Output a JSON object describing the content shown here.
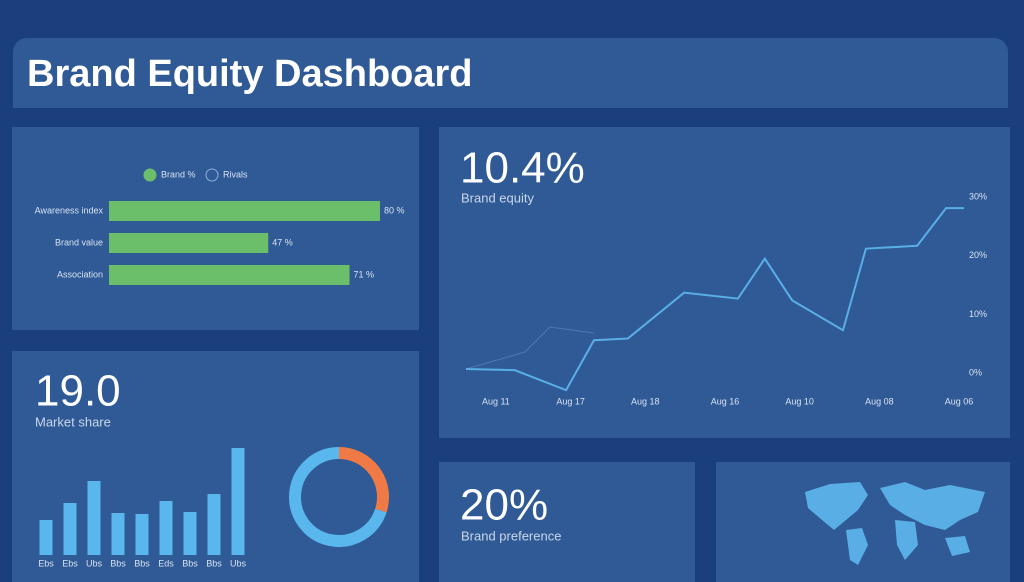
{
  "header": {
    "title": "Brand Equity Dashboard"
  },
  "kpis": [
    {
      "value": "10.4%",
      "label": "Brand equity"
    },
    {
      "value": "19.0",
      "label": "Market share"
    },
    {
      "value": "20%",
      "label": "Brand preference"
    }
  ],
  "chart_data": [
    {
      "type": "hbar",
      "series": [
        {
          "name": "Brand %",
          "color": "#6cbf6a"
        },
        {
          "name": "Rivals",
          "color": "none"
        }
      ],
      "categories": [
        "Awareness index",
        "Brand value",
        "Association"
      ],
      "values": [
        80,
        47,
        71
      ],
      "value_labels": [
        "80 %",
        "47 %",
        "71 %"
      ]
    },
    {
      "type": "line",
      "x": [
        0,
        9.8,
        20.1,
        25.7,
        32.5,
        43.8,
        54.6,
        60,
        65.5,
        75.7,
        80.3,
        90.6,
        96.4,
        100
      ],
      "values": [
        0.7,
        0.5,
        -2.9,
        5.6,
        5.9,
        13.7,
        12.7,
        19.5,
        12.4,
        7.3,
        21.2,
        21.7,
        28.1,
        28.1
      ],
      "color": "#5aaee6",
      "xlim": [
        0,
        100
      ],
      "ylim": [
        -4,
        30
      ],
      "xticks": [
        {
          "value": 6,
          "label": "Aug 11"
        },
        {
          "value": 21,
          "label": "Aug 17"
        },
        {
          "value": 36,
          "label": "Aug 18"
        },
        {
          "value": 52,
          "label": "Aug 16"
        },
        {
          "value": 67,
          "label": "Aug 10"
        },
        {
          "value": 83,
          "label": "Aug 08"
        },
        {
          "value": 99,
          "label": "Aug 06"
        }
      ],
      "yticks": [
        {
          "value": 0,
          "label": "0%"
        },
        {
          "value": 10,
          "label": "10%"
        },
        {
          "value": 20,
          "label": "20%"
        },
        {
          "value": 30,
          "label": "30%"
        }
      ]
    },
    {
      "type": "bar",
      "categories": [
        "Ebs",
        "Ebs",
        "Ubs",
        "Bbs",
        "Bbs",
        "Eds",
        "Bbs",
        "Bbs",
        "Ubs"
      ],
      "values": [
        35,
        52,
        74,
        42,
        41,
        54,
        43,
        61,
        107
      ],
      "color": "#5ab7ee"
    },
    {
      "type": "donut",
      "values": [
        30,
        70
      ],
      "colors": [
        "#ef7a45",
        "#5ab7ee"
      ]
    }
  ]
}
